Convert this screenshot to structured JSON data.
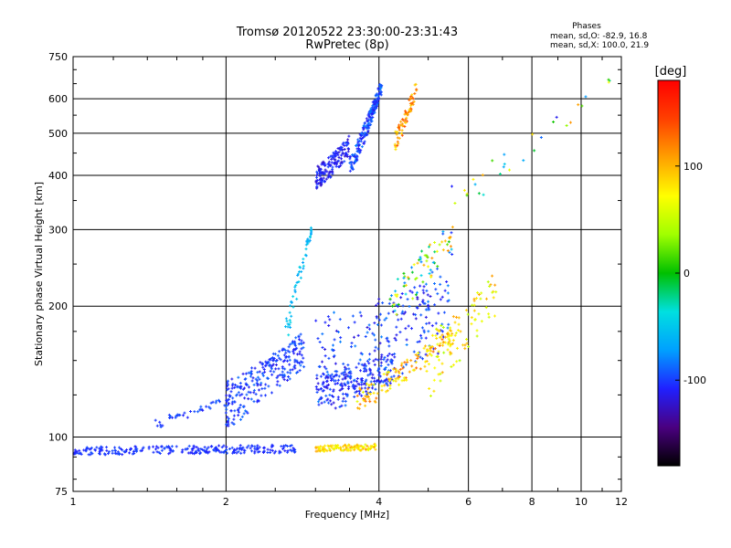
{
  "chart_data": {
    "type": "scatter",
    "title": "Tromsø 20120522 23:30:00-23:31:43",
    "subtitle": "RwPretec (8p)",
    "xlabel": "Frequency [MHz]",
    "ylabel": "Stationary phase Virtual Height [km]",
    "x_scale": "log",
    "y_scale": "log",
    "xlim": [
      1,
      12
    ],
    "ylim": [
      75,
      750
    ],
    "x_ticks": [
      "1",
      "2",
      "4",
      "6",
      "8",
      "10",
      "12"
    ],
    "y_ticks": [
      "75",
      "100",
      "200",
      "300",
      "400",
      "500",
      "600",
      "750"
    ],
    "grid": true,
    "legend": {
      "title": "Phases",
      "lines": [
        "mean, sd,O: -82.9, 16.8",
        "mean, sd,X: 100.0, 21.9"
      ],
      "position": "top-right"
    },
    "colorbar": {
      "label": "[deg]",
      "min": -180,
      "max": 180,
      "tick_labels": [
        "100",
        "0",
        "-100"
      ],
      "tick_values": [
        100,
        0,
        -100
      ],
      "colormap": [
        "#000000",
        "#4a0080",
        "#2020ff",
        "#00a0ff",
        "#00e0e0",
        "#00c000",
        "#a0ff00",
        "#ffff00",
        "#ffa000",
        "#ff4000",
        "#ff0000"
      ]
    },
    "groups": [
      {
        "f1": 1.0,
        "f2": 2.75,
        "h1": 93,
        "h2": 94,
        "spread": 2,
        "n": 260,
        "p1": -110,
        "p2": -95
      },
      {
        "f1": 3.0,
        "f2": 3.95,
        "h1": 94,
        "h2": 95,
        "spread": 1.5,
        "n": 110,
        "p1": 60,
        "p2": 110
      },
      {
        "f1": 1.45,
        "f2": 2.1,
        "h1": 108,
        "h2": 123,
        "spread": 3,
        "n": 45,
        "p1": -110,
        "p2": -90
      },
      {
        "f1": 2.0,
        "f2": 2.85,
        "h1": 120,
        "h2": 160,
        "spread": 15,
        "n": 260,
        "p1": -115,
        "p2": -85
      },
      {
        "f1": 2.6,
        "f2": 2.95,
        "h1": 170,
        "h2": 305,
        "spread": 12,
        "n": 55,
        "p1": -75,
        "p2": -40
      },
      {
        "f1": 3.0,
        "f2": 4.3,
        "h1": 128,
        "h2": 145,
        "spread": 12,
        "n": 200,
        "p1": -120,
        "p2": -90
      },
      {
        "f1": 3.0,
        "f2": 5.5,
        "h1": 150,
        "h2": 200,
        "spread": 40,
        "n": 240,
        "p1": -120,
        "p2": -80
      },
      {
        "f1": 3.6,
        "f2": 5.6,
        "h1": 122,
        "h2": 170,
        "spread": 8,
        "n": 130,
        "p1": 60,
        "p2": 130
      },
      {
        "f1": 4.9,
        "f2": 6.8,
        "h1": 145,
        "h2": 215,
        "spread": 25,
        "n": 90,
        "p1": 40,
        "p2": 110
      },
      {
        "f1": 4.2,
        "f2": 5.6,
        "h1": 210,
        "h2": 290,
        "spread": 25,
        "n": 80,
        "p1": -110,
        "p2": 120
      },
      {
        "f1": 3.0,
        "f2": 3.5,
        "h1": 395,
        "h2": 470,
        "spread": 25,
        "n": 160,
        "p1": -125,
        "p2": -95
      },
      {
        "f1": 3.5,
        "f2": 4.05,
        "h1": 420,
        "h2": 640,
        "spread": 25,
        "n": 200,
        "p1": -115,
        "p2": -80
      },
      {
        "f1": 4.3,
        "f2": 4.75,
        "h1": 480,
        "h2": 640,
        "spread": 25,
        "n": 70,
        "p1": 80,
        "p2": 140
      },
      {
        "f1": 5.5,
        "f2": 11.5,
        "h1": 350,
        "h2": 650,
        "spread": 30,
        "n": 30,
        "p1": -130,
        "p2": 150
      }
    ]
  }
}
